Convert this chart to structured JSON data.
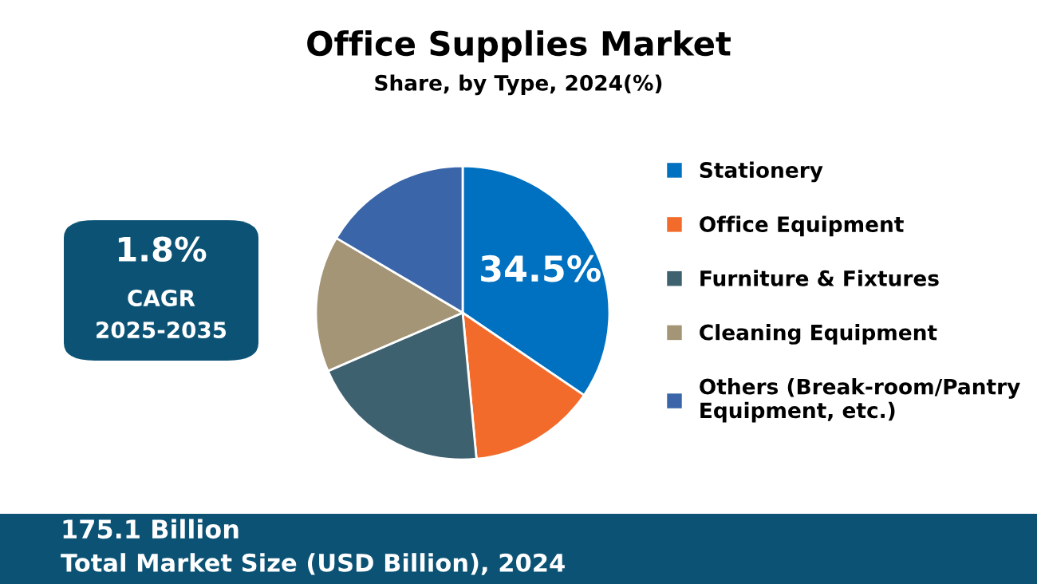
{
  "chart_data": {
    "type": "pie",
    "title": "Office Supplies Market",
    "subtitle": "Share, by Type, 2024(%)",
    "categories": [
      "Stationery",
      "Office Equipment",
      "Furniture & Fixtures",
      "Cleaning Equipment",
      "Others (Break-room/Pantry\nEquipment, etc.)"
    ],
    "values": [
      34.5,
      14,
      20,
      15,
      16.5
    ],
    "colors": [
      "#0070c0",
      "#f26b2a",
      "#3e6170",
      "#a39575",
      "#3a65a8"
    ],
    "value_labels": [
      "34.5%",
      null,
      null,
      null,
      null
    ],
    "legend": "right",
    "annotations": [
      "1.8%",
      "CAGR",
      "2025-2035",
      "175.1 Billion",
      "Total Market Size (USD Billion), 2024"
    ]
  }
}
